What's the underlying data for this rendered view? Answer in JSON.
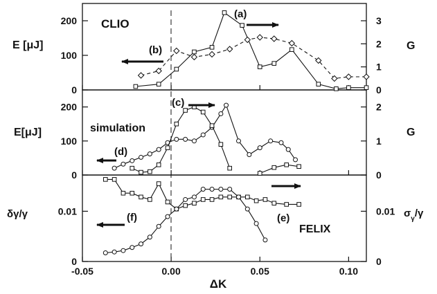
{
  "chart_data": [
    {
      "type": "line",
      "panel": "top",
      "xlim": [
        -0.05,
        0.11
      ],
      "ylim": [
        0,
        250
      ],
      "y2lim": [
        0,
        3.75
      ],
      "ylabel": "E [μJ]",
      "y2label": "G",
      "yticks": [
        0,
        100,
        200
      ],
      "y2ticks": [
        0,
        1,
        2,
        3
      ],
      "annotations": {
        "title": "CLIO",
        "a": "(a)",
        "b": "(b)"
      },
      "series": [
        {
          "id": "gain",
          "axis": "right",
          "style": "solid",
          "marker": "square",
          "x": [
            -0.02,
            -0.007,
            0.003,
            0.013,
            0.023,
            0.03,
            0.04,
            0.05,
            0.058,
            0.068,
            0.083,
            0.093,
            0.1,
            0.11
          ],
          "y": [
            0.15,
            0.25,
            0.9,
            1.65,
            1.85,
            3.35,
            2.8,
            1.0,
            1.15,
            1.75,
            0.25,
            0.05,
            0.1,
            0.1
          ]
        },
        {
          "id": "energy",
          "axis": "left",
          "style": "dashed",
          "marker": "diamond",
          "x": [
            -0.017,
            -0.007,
            0.003,
            0.013,
            0.023,
            0.033,
            0.043,
            0.05,
            0.058,
            0.068,
            0.083,
            0.092,
            0.1,
            0.11
          ],
          "y": [
            42,
            55,
            113,
            95,
            103,
            118,
            145,
            152,
            148,
            135,
            85,
            33,
            38,
            38
          ]
        }
      ]
    },
    {
      "type": "line",
      "panel": "middle",
      "xlim": [
        -0.05,
        0.11
      ],
      "ylim": [
        0,
        250
      ],
      "y2lim": [
        0,
        2.5
      ],
      "ylabel": "E[μJ]",
      "y2label": "G",
      "yticks": [
        0,
        100,
        200
      ],
      "y2ticks": [
        0,
        1,
        2
      ],
      "annotations": {
        "title": "simulation",
        "c": "(c)",
        "d": "(d)"
      },
      "series": [
        {
          "id": "sim-energy",
          "axis": "left",
          "style": "solid",
          "marker": "circle",
          "x": [
            -0.032,
            -0.027,
            -0.022,
            -0.017,
            -0.012,
            -0.007,
            -0.002,
            0.003,
            0.008,
            0.013,
            0.018,
            0.023,
            0.028,
            0.031,
            0.038,
            0.044,
            0.05,
            0.056,
            0.062,
            0.066,
            0.07
          ],
          "y": [
            20,
            32,
            42,
            52,
            62,
            75,
            95,
            105,
            105,
            100,
            118,
            140,
            180,
            205,
            100,
            60,
            80,
            100,
            95,
            75,
            45
          ]
        },
        {
          "id": "sim-gain",
          "axis": "right",
          "style": "solid",
          "marker": "square",
          "x": [
            -0.022,
            -0.017,
            -0.012,
            -0.007,
            -0.002,
            0.003,
            0.008,
            0.013,
            0.018,
            0.023,
            0.028,
            0.033
          ],
          "y": [
            0.2,
            0.08,
            0.1,
            0.3,
            0.8,
            1.5,
            1.9,
            2.0,
            1.85,
            1.45,
            0.9,
            0.2
          ]
        },
        {
          "id": "sim-gain-tail",
          "axis": "right",
          "style": "solid",
          "marker": "square",
          "x": [
            0.05,
            0.058,
            0.065,
            0.072
          ],
          "y": [
            0.05,
            0.22,
            0.3,
            0.25
          ]
        }
      ]
    },
    {
      "type": "line",
      "panel": "bottom",
      "xlim": [
        -0.05,
        0.11
      ],
      "xlabel": "ΔK",
      "ylabel": "δγ/γ",
      "y2label": "σ_γ/γ",
      "xticks": [
        -0.05,
        0.0,
        0.05,
        0.1
      ],
      "yticks": [
        0,
        0.01
      ],
      "y2ticks": [
        0,
        0.01
      ],
      "annotations": {
        "title": "FELIX",
        "e": "(e)",
        "f": "(f)"
      },
      "series": [
        {
          "id": "spread-upper",
          "axis": "right",
          "style": "solid",
          "marker": "square",
          "x": [
            -0.037,
            -0.032,
            -0.027,
            -0.022,
            -0.017,
            -0.012,
            -0.007,
            -0.002,
            0.003,
            0.008,
            0.013,
            0.018,
            0.023,
            0.028,
            0.033,
            0.038,
            0.043,
            0.048,
            0.053,
            0.058,
            0.065,
            0.072
          ],
          "y": [
            0.0125,
            0.0125,
            0.0115,
            0.0115,
            0.0112,
            0.011,
            0.0122,
            0.0108,
            0.0102,
            0.0105,
            0.0107,
            0.011,
            0.011,
            0.0112,
            0.0112,
            0.0112,
            0.0112,
            0.0109,
            0.011,
            0.0107,
            0.0106,
            0.0106
          ]
        },
        {
          "id": "spread-lower",
          "axis": "left",
          "style": "solid",
          "marker": "circle",
          "x": [
            -0.037,
            -0.032,
            -0.027,
            -0.022,
            -0.017,
            -0.012,
            -0.007,
            -0.002,
            0.003,
            0.008,
            0.013,
            0.018,
            0.023,
            0.028,
            0.033,
            0.038,
            0.043,
            0.048,
            0.053
          ],
          "y": [
            0.0045,
            0.0047,
            0.005,
            0.0056,
            0.0062,
            0.0072,
            0.0085,
            0.0095,
            0.0102,
            0.011,
            0.0112,
            0.0118,
            0.0118,
            0.0118,
            0.0118,
            0.0112,
            0.0102,
            0.0088,
            0.0068
          ]
        }
      ]
    }
  ],
  "axes": {
    "xticklabels": [
      "-0.05",
      "0.00",
      "0.05",
      "0.10"
    ]
  }
}
